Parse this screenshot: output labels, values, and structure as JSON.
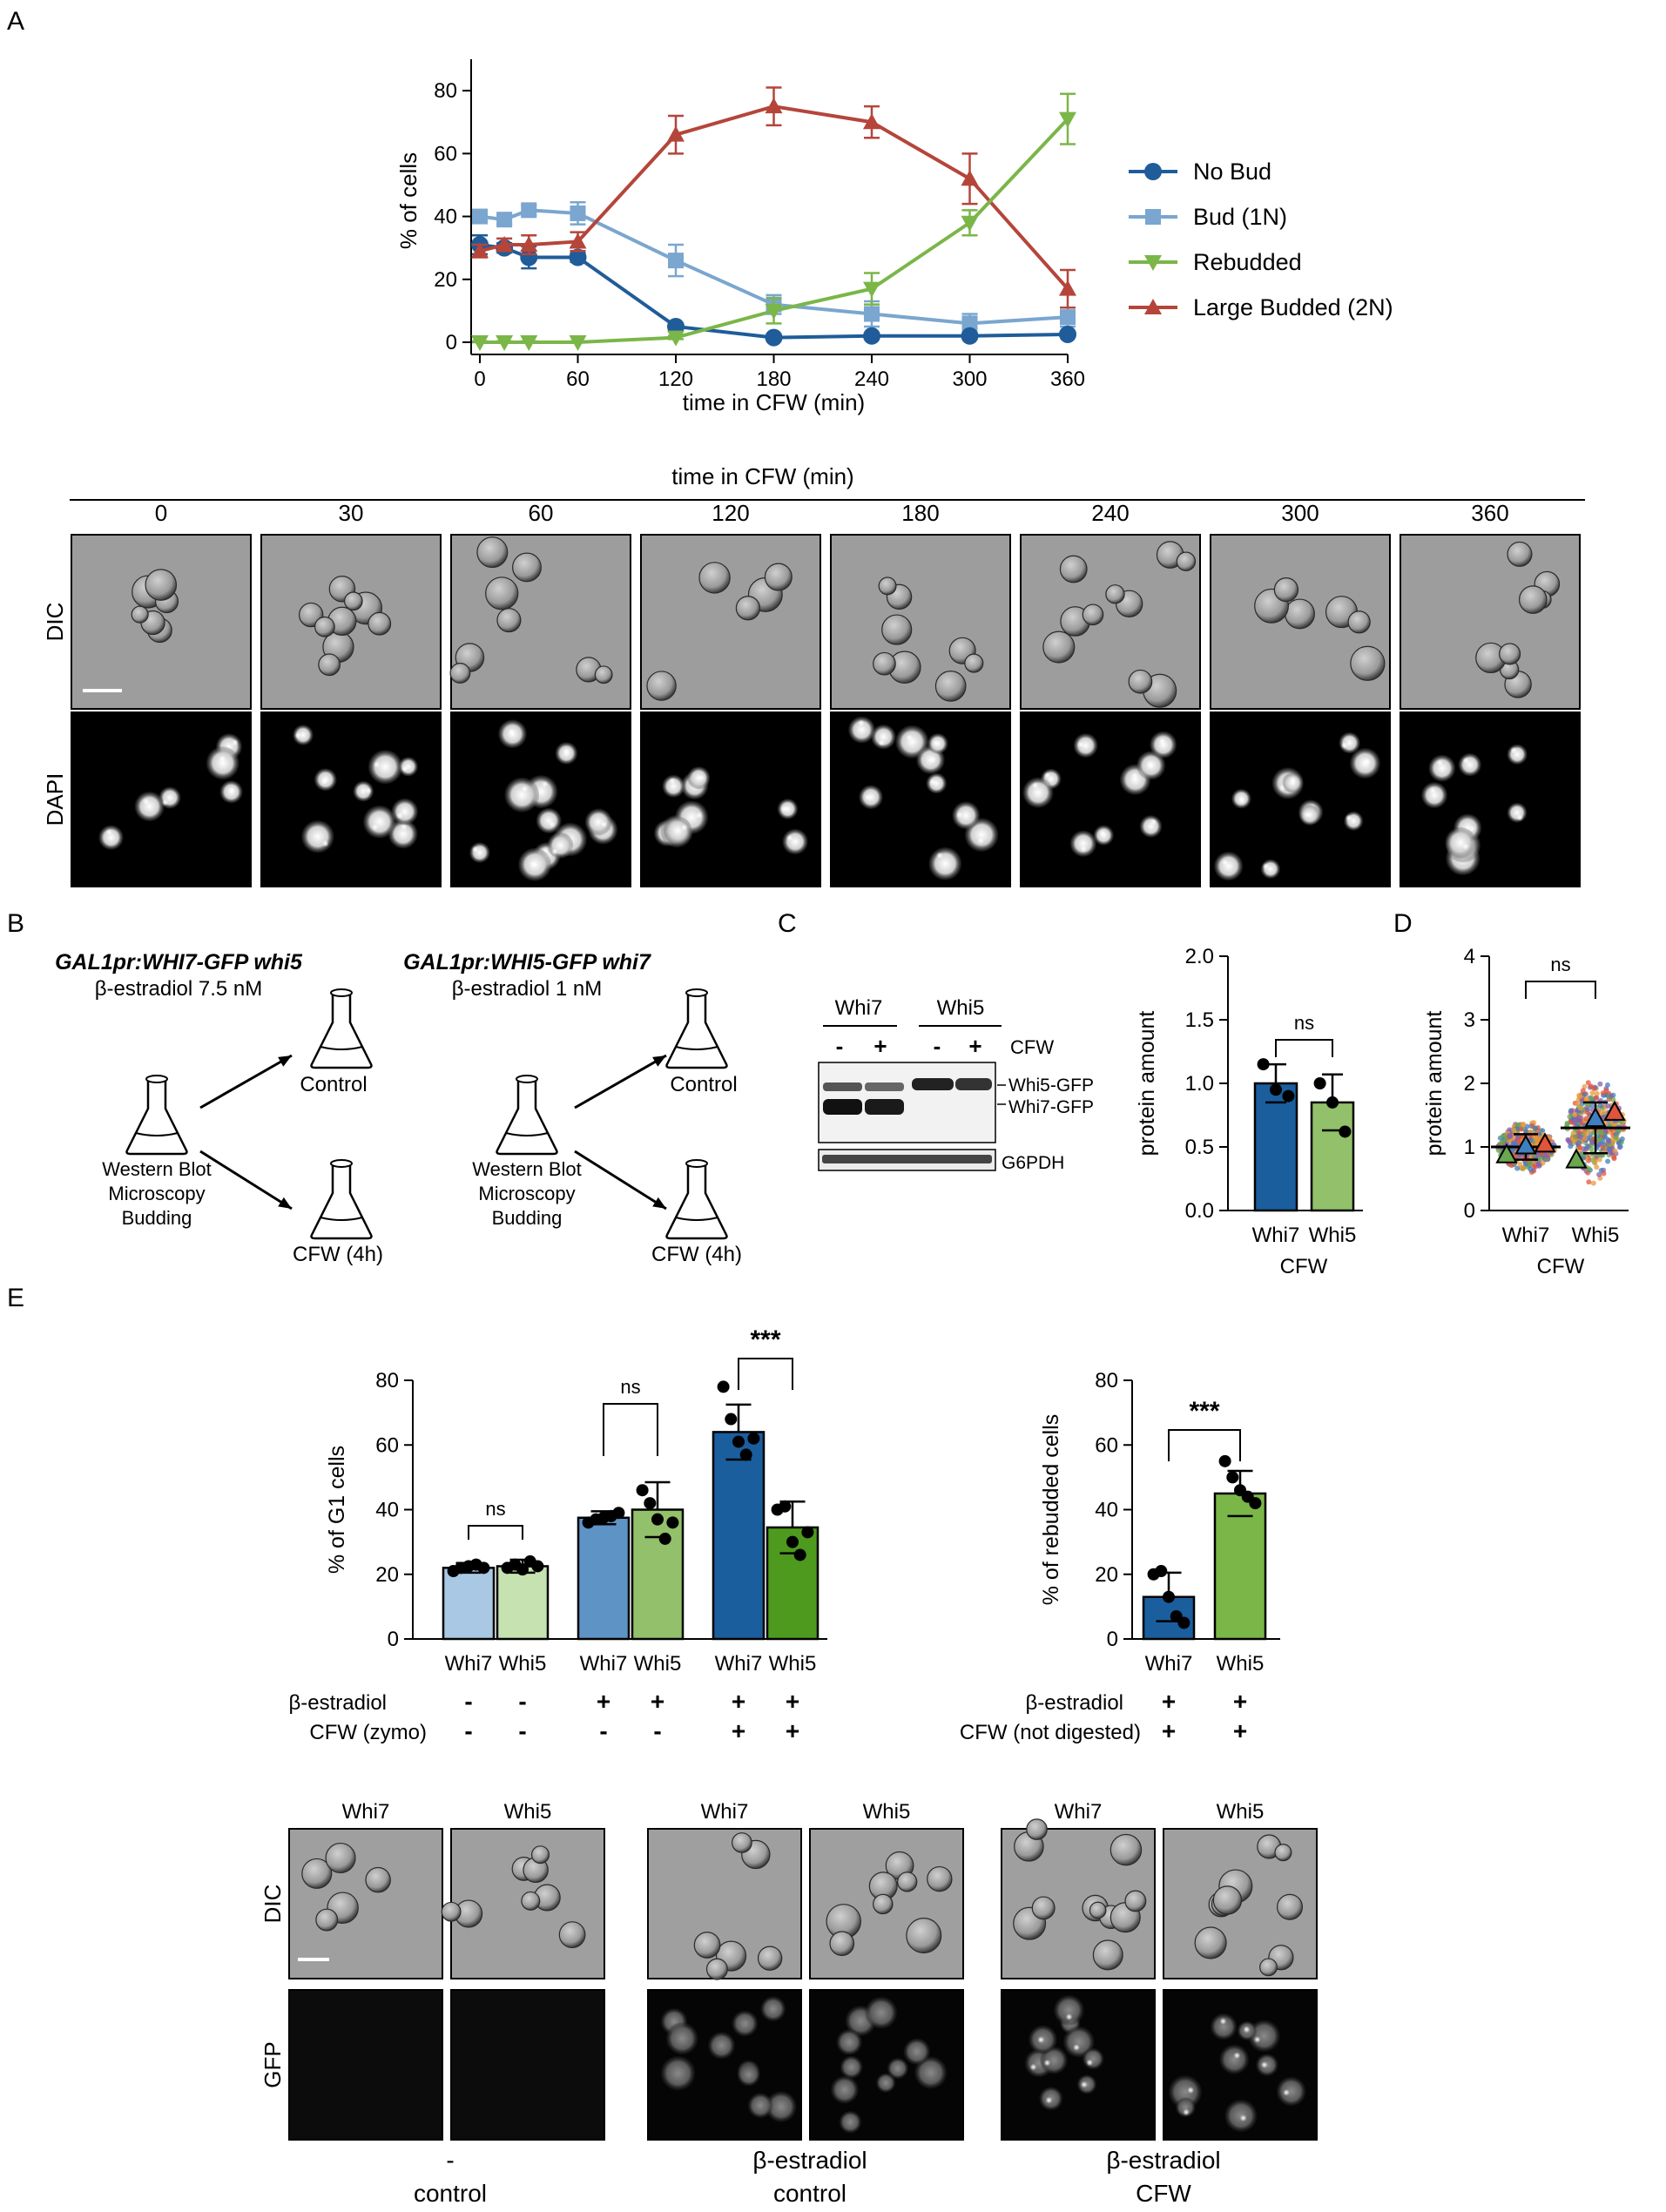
{
  "panel_labels": [
    "A",
    "B",
    "C",
    "D",
    "E"
  ],
  "colors": {
    "no_bud": "#1f5c99",
    "bud_1n": "#7aa6cf",
    "rebudded": "#7ab648",
    "large_budded": "#b5453a",
    "whi7_light": "#a9c8e4",
    "whi5_light": "#c6e2b0",
    "whi7_mid": "#5e93c5",
    "whi5_mid": "#93c06a",
    "whi7_dark": "#1b5e9e",
    "whi5_dark": "#4e9a1e"
  },
  "panelA": {
    "chart_data": {
      "type": "line",
      "xlabel": "time in CFW (min)",
      "ylabel": "% of cells",
      "xlim": [
        0,
        360
      ],
      "ylim": [
        0,
        90
      ],
      "xticks": [
        0,
        60,
        120,
        180,
        240,
        300,
        360
      ],
      "yticks": [
        0,
        20,
        40,
        60,
        80
      ],
      "legend_position": "right",
      "series": [
        {
          "name": "No Bud",
          "marker": "circle",
          "x": [
            0,
            15,
            30,
            60,
            120,
            180,
            240,
            300,
            360
          ],
          "y": [
            31,
            30,
            27,
            27,
            5,
            1.5,
            2,
            2,
            2.5
          ],
          "err": [
            3,
            1.5,
            3.5,
            1.5,
            1,
            1,
            0.8,
            0.8,
            0.8
          ]
        },
        {
          "name": "Bud (1N)",
          "marker": "square",
          "x": [
            0,
            15,
            30,
            60,
            120,
            180,
            240,
            300,
            360
          ],
          "y": [
            40,
            39,
            42,
            41,
            26,
            12,
            9,
            6,
            8
          ],
          "err": [
            2,
            1.5,
            1.5,
            3.5,
            5,
            3,
            4,
            3,
            3
          ]
        },
        {
          "name": "Rebudded",
          "marker": "tri-down",
          "x": [
            0,
            15,
            30,
            60,
            120,
            180,
            240,
            300,
            360
          ],
          "y": [
            0,
            0,
            0,
            0,
            1.5,
            10,
            17,
            38,
            71
          ],
          "err": [
            0.3,
            0.3,
            0.3,
            0.3,
            0.5,
            4,
            5,
            4,
            8
          ]
        },
        {
          "name": "Large Budded (2N)",
          "marker": "tri-up",
          "x": [
            0,
            15,
            30,
            60,
            120,
            180,
            240,
            300,
            360
          ],
          "y": [
            29,
            31,
            31,
            32,
            66,
            75,
            70,
            52,
            17
          ],
          "err": [
            2,
            2,
            3,
            3,
            6,
            6,
            5,
            8,
            6
          ]
        }
      ]
    },
    "micro_header": "time in CFW (min)",
    "time_labels": [
      "0",
      "30",
      "60",
      "120",
      "180",
      "240",
      "300",
      "360"
    ],
    "row_labels": [
      "DIC",
      "DAPI"
    ]
  },
  "panelB": {
    "left_title": "GAL1pr:WHI7-GFP whi5",
    "left_sub": "β-estradiol 7.5 nM",
    "right_title": "GAL1pr:WHI5-GFP whi7",
    "right_sub": "β-estradiol 1 nM",
    "control": "Control",
    "cfw": "CFW (4h)",
    "assays": [
      "Western Blot",
      "Microscopy",
      "Budding"
    ]
  },
  "panelC": {
    "blot_groups": [
      "Whi7",
      "Whi5"
    ],
    "lane_signs": [
      "-",
      "+",
      "-",
      "+"
    ],
    "cfw_label": "CFW",
    "band_labels": [
      "Whi5-GFP",
      "Whi7-GFP",
      "G6PDH"
    ],
    "chart_data": {
      "type": "bar",
      "ylabel": "protein amount",
      "categories": [
        "Whi7",
        "Whi5"
      ],
      "values": [
        1.0,
        0.85
      ],
      "err": [
        0.15,
        0.22
      ],
      "points": [
        [
          1.15,
          0.95,
          0.9
        ],
        [
          1.0,
          0.85,
          0.62
        ]
      ],
      "ylim": [
        0,
        2.0
      ],
      "yticks": [
        "0.0",
        "0.5",
        "1.0",
        "1.5",
        "2.0"
      ],
      "xgroup": "CFW",
      "sig": "ns"
    }
  },
  "panelD": {
    "chart_data": {
      "type": "scatter",
      "ylabel": "protein amount",
      "categories": [
        "Whi7",
        "Whi5"
      ],
      "means": [
        1.0,
        1.3
      ],
      "sd": [
        0.2,
        0.4
      ],
      "ylim": [
        0,
        4
      ],
      "yticks": [
        "0",
        "1",
        "2",
        "3",
        "4"
      ],
      "replicate_means": [
        [
          0.88,
          1.02,
          1.05
        ],
        [
          0.8,
          1.45,
          1.55
        ]
      ],
      "xgroup": "CFW",
      "sig": "ns"
    }
  },
  "panelE": {
    "chart_g1": {
      "type": "bar",
      "ylabel": "% of G1 cells",
      "categories": [
        "Whi7",
        "Whi5",
        "Whi7",
        "Whi5",
        "Whi7",
        "Whi5"
      ],
      "values": [
        22,
        22.5,
        37.5,
        40,
        64,
        34.5
      ],
      "err": [
        1.5,
        2,
        2,
        8.5,
        8.5,
        8
      ],
      "points": [
        [
          21,
          22,
          22.5,
          23,
          22
        ],
        [
          22,
          23,
          21.5,
          24,
          22.5
        ],
        [
          36,
          37,
          37.5,
          38,
          39
        ],
        [
          46,
          42,
          37,
          31,
          36
        ],
        [
          78,
          68,
          61,
          57,
          62
        ],
        [
          40,
          41,
          30,
          26,
          33
        ]
      ],
      "ylim": [
        0,
        80
      ],
      "yticks": [
        "0",
        "20",
        "40",
        "60",
        "80"
      ],
      "row_labels": [
        "β-estradiol",
        "CFW (zymo)"
      ],
      "estradiol_signs": [
        "-",
        "-",
        "+",
        "+",
        "+",
        "+"
      ],
      "cfw_signs": [
        "-",
        "-",
        "-",
        "-",
        "+",
        "+"
      ],
      "sig": [
        "ns",
        "ns",
        "***"
      ]
    },
    "chart_rebud": {
      "type": "bar",
      "ylabel": "% of rebudded cells",
      "categories": [
        "Whi7",
        "Whi5"
      ],
      "values": [
        13,
        45
      ],
      "err": [
        7.5,
        7
      ],
      "points": [
        [
          20,
          21,
          13,
          7,
          5
        ],
        [
          55,
          50,
          46,
          44,
          42
        ]
      ],
      "ylim": [
        0,
        80
      ],
      "yticks": [
        "0",
        "20",
        "40",
        "60",
        "80"
      ],
      "row_labels": [
        "β-estradiol",
        "CFW (not digested)"
      ],
      "estradiol_signs": [
        "+",
        "+"
      ],
      "cfw_signs": [
        "+",
        "+"
      ],
      "sig": "***"
    },
    "micro_cols": [
      "Whi7",
      "Whi5",
      "Whi7",
      "Whi5",
      "Whi7",
      "Whi5"
    ],
    "row_labels": [
      "DIC",
      "GFP"
    ],
    "group_labels": [
      [
        "-",
        "control"
      ],
      [
        "β-estradiol",
        "control"
      ],
      [
        "β-estradiol",
        "CFW"
      ]
    ]
  }
}
